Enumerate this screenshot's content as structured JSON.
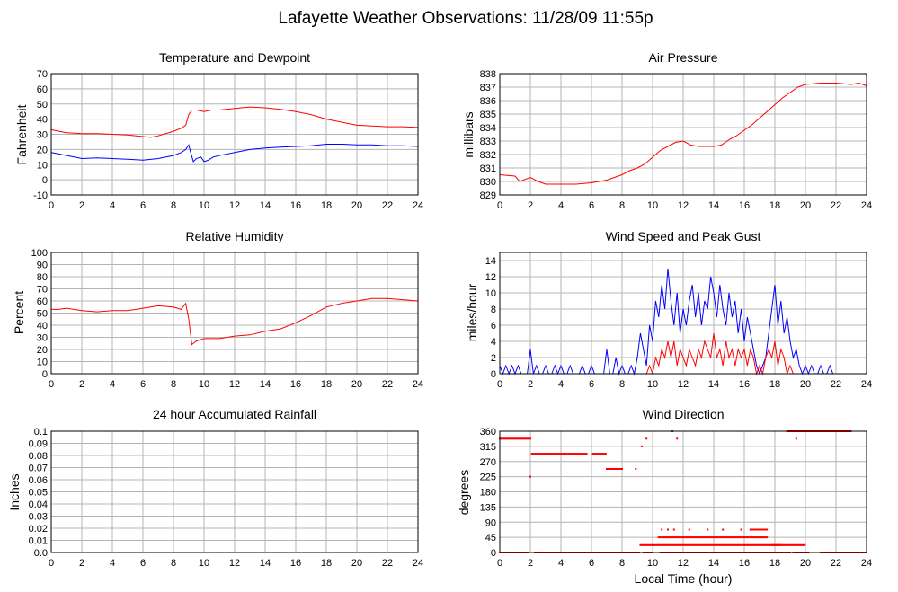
{
  "title": "Lafayette Weather Observations: 11/28/09 11:55p",
  "x_axis_label": "Local Time (hour)",
  "colors": {
    "red": "#ff0000",
    "blue": "#0000ff",
    "grid": "#b4b4b4"
  },
  "chart_data": [
    {
      "id": "temp",
      "type": "line",
      "title": "Temperature and Dewpoint",
      "ylabel": "Fahrenheit",
      "xlim": [
        0,
        24
      ],
      "ylim": [
        -10,
        70
      ],
      "xticks": [
        0,
        2,
        4,
        6,
        8,
        10,
        12,
        14,
        16,
        18,
        20,
        22,
        24
      ],
      "yticks": [
        -10,
        0,
        10,
        20,
        30,
        40,
        50,
        60,
        70
      ],
      "ytick_labels": [
        "-10",
        "0",
        "10",
        "20",
        "30",
        "40",
        "50",
        "60",
        "70"
      ],
      "series": [
        {
          "color": "#ff0000",
          "x": [
            0,
            0.5,
            1,
            2,
            3,
            4,
            5,
            6,
            6.5,
            7,
            8,
            8.5,
            8.8,
            9.0,
            9.2,
            9.5,
            10,
            10.5,
            11,
            12,
            13,
            14,
            15,
            16,
            17,
            18,
            19,
            20,
            21,
            22,
            23,
            24
          ],
          "y": [
            33,
            32,
            31,
            30.5,
            30.5,
            30,
            29.5,
            28.5,
            28,
            29,
            32,
            34,
            36,
            43,
            46,
            46,
            45,
            46,
            46,
            47,
            48,
            47.5,
            46.5,
            45,
            43,
            40,
            38,
            36,
            35.5,
            35,
            35,
            34.5
          ]
        },
        {
          "color": "#0000ff",
          "x": [
            0,
            0.5,
            1,
            1.5,
            2,
            3,
            4,
            5,
            6,
            7,
            8,
            8.5,
            8.8,
            9.0,
            9.1,
            9.3,
            9.5,
            9.8,
            10,
            10.3,
            10.6,
            11,
            12,
            13,
            14,
            15,
            16,
            17,
            18,
            19,
            20,
            21,
            22,
            23,
            24
          ],
          "y": [
            18,
            17,
            16,
            15,
            14,
            14.5,
            14,
            13.5,
            13,
            14,
            16,
            18,
            20,
            23,
            19,
            12,
            14,
            15,
            12,
            13,
            15,
            16,
            18,
            20,
            21,
            21.5,
            22,
            22.5,
            23.5,
            23.5,
            23,
            23,
            22.5,
            22.5,
            22
          ]
        }
      ]
    },
    {
      "id": "pressure",
      "type": "line",
      "title": "Air Pressure",
      "ylabel": "millibars",
      "xlim": [
        0,
        24
      ],
      "ylim": [
        829,
        838
      ],
      "xticks": [
        0,
        2,
        4,
        6,
        8,
        10,
        12,
        14,
        16,
        18,
        20,
        22,
        24
      ],
      "yticks": [
        829,
        830,
        831,
        832,
        833,
        834,
        835,
        836,
        837,
        838
      ],
      "ytick_labels": [
        "829",
        "830",
        "831",
        "832",
        "833",
        "834",
        "835",
        "836",
        "837",
        "838"
      ],
      "series": [
        {
          "color": "#ff0000",
          "x": [
            0,
            1,
            1.3,
            2,
            2.5,
            3,
            4,
            5,
            6,
            7,
            7.5,
            8,
            8.5,
            9,
            9.5,
            10,
            10.5,
            11,
            11.5,
            12,
            12.5,
            13,
            14,
            14.5,
            15,
            15.5,
            16,
            16.5,
            17,
            17.5,
            18,
            18.5,
            19,
            19.5,
            20,
            21,
            22,
            23,
            23.5,
            24
          ],
          "y": [
            830.5,
            830.4,
            830.0,
            830.3,
            830.0,
            829.8,
            829.8,
            829.8,
            829.9,
            830.1,
            830.3,
            830.5,
            830.8,
            831.0,
            831.3,
            831.8,
            832.3,
            832.6,
            832.9,
            833.0,
            832.7,
            832.6,
            832.6,
            832.7,
            833.1,
            833.4,
            833.8,
            834.2,
            834.7,
            835.2,
            835.7,
            836.2,
            836.6,
            837.0,
            837.2,
            837.3,
            837.3,
            837.2,
            837.3,
            837.1
          ]
        }
      ]
    },
    {
      "id": "humidity",
      "type": "line",
      "title": "Relative Humidity",
      "ylabel": "Percent",
      "xlim": [
        0,
        24
      ],
      "ylim": [
        0,
        100
      ],
      "xticks": [
        0,
        2,
        4,
        6,
        8,
        10,
        12,
        14,
        16,
        18,
        20,
        22,
        24
      ],
      "yticks": [
        0,
        10,
        20,
        30,
        40,
        50,
        60,
        70,
        80,
        90,
        100
      ],
      "ytick_labels": [
        "0",
        "10",
        "20",
        "30",
        "40",
        "50",
        "60",
        "70",
        "80",
        "90",
        "100"
      ],
      "series": [
        {
          "color": "#ff0000",
          "x": [
            0,
            0.5,
            1,
            2,
            3,
            4,
            5,
            6,
            7,
            8,
            8.5,
            8.8,
            9.0,
            9.2,
            9.5,
            10,
            11,
            12,
            13,
            14,
            15,
            16,
            17,
            18,
            19,
            20,
            21,
            22,
            23,
            24
          ],
          "y": [
            53,
            53,
            54,
            52,
            51,
            52,
            52,
            54,
            56,
            55,
            53,
            58,
            45,
            24,
            27,
            29,
            29,
            31,
            32,
            35,
            37,
            42,
            48,
            55,
            58,
            60,
            62,
            62,
            61,
            60
          ]
        }
      ]
    },
    {
      "id": "wind",
      "type": "line",
      "title": "Wind Speed and Peak Gust",
      "ylabel": "miles/hour",
      "xlim": [
        0,
        24
      ],
      "ylim": [
        0,
        15
      ],
      "xticks": [
        0,
        2,
        4,
        6,
        8,
        10,
        12,
        14,
        16,
        18,
        20,
        22,
        24
      ],
      "yticks": [
        0,
        2,
        4,
        6,
        8,
        10,
        12,
        14
      ],
      "ytick_labels": [
        "0",
        "2",
        "4",
        "6",
        "8",
        "10",
        "12",
        "14"
      ],
      "series": [
        {
          "color": "#0000ff",
          "x": [
            0,
            0.2,
            0.4,
            0.6,
            0.8,
            1.0,
            1.2,
            1.4,
            1.6,
            1.8,
            2.0,
            2.2,
            2.4,
            2.6,
            2.8,
            3.0,
            3.2,
            3.4,
            3.6,
            3.8,
            4.0,
            4.2,
            4.4,
            4.6,
            4.8,
            5.0,
            5.2,
            5.4,
            5.6,
            5.8,
            6.0,
            6.2,
            6.4,
            6.6,
            6.8,
            7.0,
            7.2,
            7.4,
            7.6,
            7.8,
            8.0,
            8.2,
            8.4,
            8.6,
            8.8,
            9.0,
            9.2,
            9.4,
            9.6,
            9.8,
            10.0,
            10.2,
            10.4,
            10.6,
            10.8,
            11.0,
            11.2,
            11.4,
            11.6,
            11.8,
            12.0,
            12.2,
            12.4,
            12.6,
            12.8,
            13.0,
            13.2,
            13.4,
            13.6,
            13.8,
            14.0,
            14.2,
            14.4,
            14.6,
            14.8,
            15.0,
            15.2,
            15.4,
            15.6,
            15.8,
            16.0,
            16.2,
            16.4,
            16.6,
            16.8,
            17.0,
            17.2,
            17.4,
            17.6,
            17.8,
            18.0,
            18.2,
            18.4,
            18.6,
            18.8,
            19.0,
            19.2,
            19.4,
            19.6,
            19.8,
            20.0,
            20.2,
            20.4,
            20.6,
            20.8,
            21.0,
            21.2,
            21.4,
            21.6,
            21.8,
            22.0,
            22.2,
            22.4,
            22.6,
            22.8,
            23.0,
            23.2,
            23.4,
            23.6,
            23.8,
            24.0
          ],
          "y": [
            1,
            0,
            1,
            0,
            1,
            0,
            1,
            0,
            0,
            0,
            3,
            0,
            1,
            0,
            0,
            1,
            0,
            0,
            1,
            0,
            1,
            0,
            0,
            1,
            0,
            0,
            0,
            1,
            0,
            0,
            1,
            0,
            0,
            0,
            0,
            3,
            0,
            0,
            2,
            0,
            1,
            0,
            0,
            1,
            0,
            2,
            5,
            3,
            1,
            6,
            4,
            9,
            7,
            11,
            8,
            13,
            9,
            6,
            10,
            5,
            8,
            6,
            9,
            11,
            7,
            10,
            6,
            9,
            8,
            12,
            10,
            7,
            11,
            8,
            6,
            10,
            7,
            9,
            5,
            8,
            4,
            7,
            5,
            3,
            1,
            0,
            1,
            2,
            5,
            8,
            11,
            6,
            9,
            5,
            7,
            4,
            2,
            3,
            1,
            0,
            1,
            0,
            1,
            0,
            0,
            1,
            0,
            0,
            1,
            0,
            0,
            0,
            0,
            0,
            0,
            0,
            0,
            0,
            0,
            0,
            0
          ]
        },
        {
          "color": "#ff0000",
          "x": [
            0,
            9.0,
            9.4,
            9.6,
            9.8,
            10.0,
            10.2,
            10.4,
            10.6,
            10.8,
            11.0,
            11.2,
            11.4,
            11.6,
            11.8,
            12.0,
            12.2,
            12.4,
            12.6,
            12.8,
            13.0,
            13.2,
            13.4,
            13.6,
            13.8,
            14.0,
            14.2,
            14.4,
            14.6,
            14.8,
            15.0,
            15.2,
            15.4,
            15.6,
            15.8,
            16.0,
            16.2,
            16.4,
            16.6,
            16.8,
            17.0,
            17.2,
            17.4,
            17.6,
            17.8,
            18.0,
            18.2,
            18.4,
            18.6,
            18.8,
            19.0,
            19.2,
            19.4,
            24.0
          ],
          "y": [
            0,
            0,
            0,
            0,
            1,
            0,
            2,
            1,
            3,
            2,
            4,
            2,
            4,
            1,
            3,
            2,
            1,
            3,
            2,
            1,
            3,
            2,
            4,
            3,
            2,
            5,
            2,
            3,
            1,
            4,
            2,
            3,
            1,
            3,
            2,
            3,
            1,
            3,
            2,
            0,
            1,
            0,
            2,
            3,
            2,
            4,
            1,
            3,
            2,
            0,
            1,
            0,
            0,
            0
          ]
        }
      ]
    },
    {
      "id": "rain",
      "type": "line",
      "title": "24 hour Accumulated Rainfall",
      "ylabel": "Inches",
      "xlim": [
        0,
        24
      ],
      "ylim": [
        0,
        0.1
      ],
      "xticks": [
        0,
        2,
        4,
        6,
        8,
        10,
        12,
        14,
        16,
        18,
        20,
        22,
        24
      ],
      "yticks": [
        0,
        0.01,
        0.02,
        0.03,
        0.04,
        0.05,
        0.06,
        0.07,
        0.08,
        0.09,
        0.1
      ],
      "ytick_labels": [
        "0.0",
        "0.01",
        "0.02",
        "0.03",
        "0.04",
        "0.05",
        "0.06",
        "0.07",
        "0.08",
        "0.09",
        "0.1"
      ],
      "series": [
        {
          "color": "#ff0000",
          "x": [
            0,
            24
          ],
          "y": [
            0,
            0
          ]
        }
      ]
    },
    {
      "id": "direction",
      "type": "scatter",
      "title": "Wind Direction",
      "ylabel": "degrees",
      "xlim": [
        0,
        24
      ],
      "ylim": [
        0,
        360
      ],
      "xticks": [
        0,
        2,
        4,
        6,
        8,
        10,
        12,
        14,
        16,
        18,
        20,
        22,
        24
      ],
      "yticks": [
        0,
        45,
        90,
        135,
        180,
        225,
        270,
        315,
        360
      ],
      "ytick_labels": [
        "0",
        "45",
        "90",
        "135",
        "180",
        "225",
        "270",
        "315",
        "360"
      ],
      "show_xlabel": true,
      "segments": [
        {
          "y": 338,
          "x0": 0.0,
          "x1": 2.0
        },
        {
          "y": 0,
          "x0": 0.0,
          "x1": 1.9
        },
        {
          "y": 293,
          "x0": 2.1,
          "x1": 5.7
        },
        {
          "y": 0,
          "x0": 2.3,
          "x1": 9.2
        },
        {
          "y": 293,
          "x0": 6.1,
          "x1": 7.0
        },
        {
          "y": 248,
          "x0": 7.0,
          "x1": 8.0
        },
        {
          "y": 22,
          "x0": 9.2,
          "x1": 10.4
        },
        {
          "y": 0,
          "x0": 9.4,
          "x1": 10.0
        },
        {
          "y": 22,
          "x0": 10.4,
          "x1": 18.4
        },
        {
          "y": 45,
          "x0": 10.4,
          "x1": 17.5
        },
        {
          "y": 0,
          "x0": 10.5,
          "x1": 19.0
        },
        {
          "y": 68,
          "x0": 16.4,
          "x1": 17.5
        },
        {
          "y": 22,
          "x0": 17.8,
          "x1": 20.0
        },
        {
          "y": 360,
          "x0": 18.8,
          "x1": 23.0
        },
        {
          "y": 0,
          "x0": 19.2,
          "x1": 20.2
        },
        {
          "y": 0,
          "x0": 21.0,
          "x1": 24.0
        }
      ],
      "points": [
        {
          "x": 2.0,
          "y": 225
        },
        {
          "x": 7.9,
          "y": 248
        },
        {
          "x": 8.9,
          "y": 248
        },
        {
          "x": 9.3,
          "y": 315
        },
        {
          "x": 9.6,
          "y": 338
        },
        {
          "x": 10.6,
          "y": 68
        },
        {
          "x": 11.0,
          "y": 68
        },
        {
          "x": 11.4,
          "y": 68
        },
        {
          "x": 11.3,
          "y": 360
        },
        {
          "x": 11.6,
          "y": 338
        },
        {
          "x": 12.4,
          "y": 68
        },
        {
          "x": 13.6,
          "y": 68
        },
        {
          "x": 14.6,
          "y": 68
        },
        {
          "x": 15.8,
          "y": 68
        },
        {
          "x": 17.2,
          "y": 45
        },
        {
          "x": 19.4,
          "y": 338
        }
      ]
    }
  ]
}
